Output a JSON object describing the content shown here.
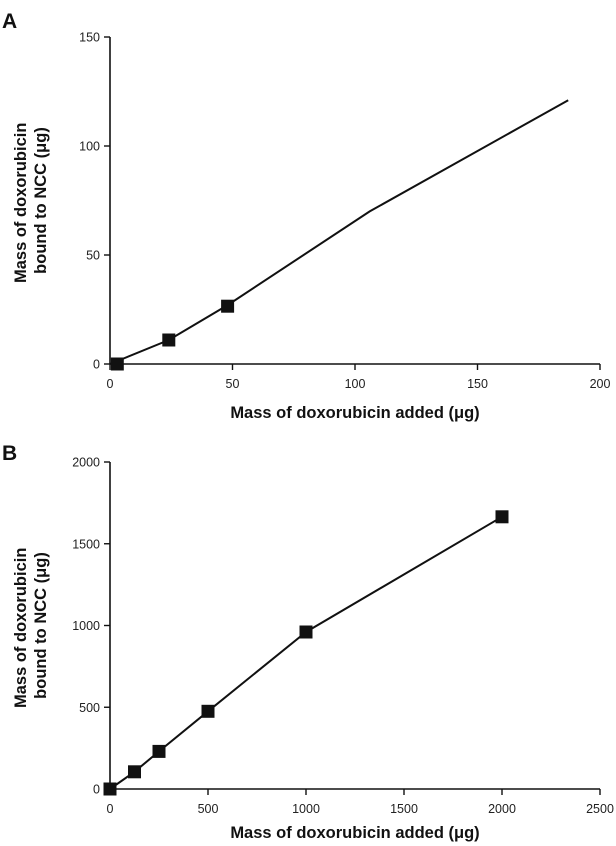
{
  "chart_data": [
    {
      "panel": "A",
      "type": "line",
      "xlabel": "Mass of doxorubicin added (μg)",
      "ylabel": "Mass of doxorubicin bound to NCC (μg)",
      "ylabel_lines": [
        "Mass of doxorubicin",
        "bound to NCC (μg)"
      ],
      "xlim": [
        0,
        200
      ],
      "ylim": [
        0,
        150
      ],
      "xticks": [
        0,
        50,
        100,
        150,
        200
      ],
      "yticks": [
        0,
        50,
        100,
        150
      ],
      "line": {
        "x": [
          0,
          24,
          48,
          106,
          187
        ],
        "y": [
          0,
          11,
          27,
          70,
          121
        ]
      },
      "markers": {
        "x": [
          3,
          24,
          48
        ],
        "y": [
          0,
          11,
          26.5
        ]
      },
      "grid": false,
      "marker_style": "filled-square"
    },
    {
      "panel": "B",
      "type": "line",
      "xlabel": "Mass of doxorubicin added (μg)",
      "ylabel": "Mass of doxorubicin bound to NCC (μg)",
      "ylabel_lines": [
        "Mass of doxorubicin",
        "bound to NCC (μg)"
      ],
      "xlim": [
        0,
        2500
      ],
      "ylim": [
        0,
        2000
      ],
      "xticks": [
        0,
        500,
        1000,
        1500,
        2000,
        2500
      ],
      "yticks": [
        0,
        500,
        1000,
        1500,
        2000
      ],
      "line": {
        "x": [
          0,
          125,
          250,
          500,
          1000,
          2000
        ],
        "y": [
          0,
          105,
          230,
          475,
          960,
          1665
        ]
      },
      "markers": {
        "x": [
          0,
          125,
          250,
          500,
          1000,
          2000
        ],
        "y": [
          0,
          105,
          230,
          475,
          960,
          1665
        ]
      },
      "grid": false,
      "marker_style": "filled-square"
    }
  ]
}
